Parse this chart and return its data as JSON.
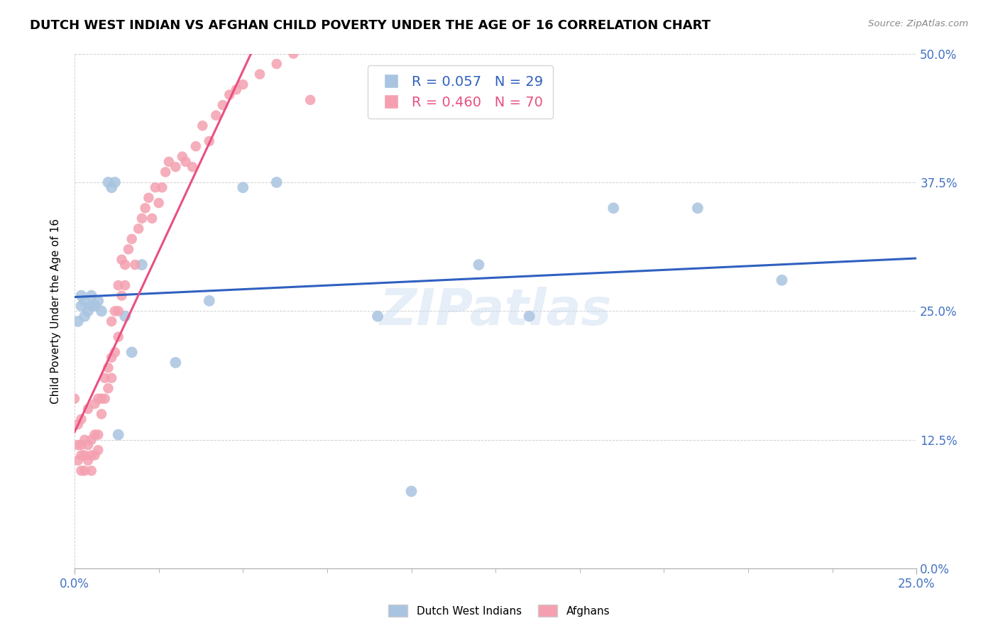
{
  "title": "DUTCH WEST INDIAN VS AFGHAN CHILD POVERTY UNDER THE AGE OF 16 CORRELATION CHART",
  "source": "Source: ZipAtlas.com",
  "ylabel": "Child Poverty Under the Age of 16",
  "x_min": 0.0,
  "x_max": 0.25,
  "y_min": 0.0,
  "y_max": 0.5,
  "watermark": "ZIPatlas",
  "legend_labels": [
    "Dutch West Indians",
    "Afghans"
  ],
  "dutch_R": "0.057",
  "dutch_N": "29",
  "afghan_R": "0.460",
  "afghan_N": "70",
  "dutch_color": "#a8c4e0",
  "afghan_color": "#f4a0b0",
  "dutch_line_color": "#3060c0",
  "afghan_line_color": "#e85080",
  "dutch_scatter_x": [
    0.001,
    0.002,
    0.002,
    0.003,
    0.003,
    0.004,
    0.005,
    0.005,
    0.006,
    0.007,
    0.008,
    0.01,
    0.011,
    0.012,
    0.013,
    0.015,
    0.017,
    0.02,
    0.03,
    0.04,
    0.05,
    0.06,
    0.09,
    0.1,
    0.12,
    0.135,
    0.16,
    0.185,
    0.21
  ],
  "dutch_scatter_y": [
    0.24,
    0.255,
    0.265,
    0.245,
    0.26,
    0.25,
    0.255,
    0.265,
    0.255,
    0.26,
    0.25,
    0.375,
    0.37,
    0.375,
    0.13,
    0.245,
    0.21,
    0.295,
    0.2,
    0.26,
    0.37,
    0.375,
    0.245,
    0.075,
    0.295,
    0.245,
    0.35,
    0.35,
    0.28
  ],
  "afghan_scatter_x": [
    0.0,
    0.001,
    0.001,
    0.001,
    0.002,
    0.002,
    0.002,
    0.002,
    0.003,
    0.003,
    0.003,
    0.004,
    0.004,
    0.004,
    0.005,
    0.005,
    0.005,
    0.006,
    0.006,
    0.006,
    0.007,
    0.007,
    0.007,
    0.008,
    0.008,
    0.009,
    0.009,
    0.01,
    0.01,
    0.011,
    0.011,
    0.011,
    0.012,
    0.012,
    0.013,
    0.013,
    0.013,
    0.014,
    0.014,
    0.015,
    0.015,
    0.016,
    0.017,
    0.018,
    0.019,
    0.02,
    0.021,
    0.022,
    0.023,
    0.024,
    0.025,
    0.026,
    0.027,
    0.028,
    0.03,
    0.032,
    0.033,
    0.035,
    0.036,
    0.038,
    0.04,
    0.042,
    0.044,
    0.046,
    0.048,
    0.05,
    0.055,
    0.06,
    0.065,
    0.07
  ],
  "afghan_scatter_y": [
    0.165,
    0.105,
    0.12,
    0.14,
    0.095,
    0.11,
    0.12,
    0.145,
    0.095,
    0.11,
    0.125,
    0.105,
    0.12,
    0.155,
    0.095,
    0.11,
    0.125,
    0.11,
    0.13,
    0.16,
    0.115,
    0.13,
    0.165,
    0.15,
    0.165,
    0.165,
    0.185,
    0.175,
    0.195,
    0.185,
    0.205,
    0.24,
    0.21,
    0.25,
    0.225,
    0.25,
    0.275,
    0.265,
    0.3,
    0.275,
    0.295,
    0.31,
    0.32,
    0.295,
    0.33,
    0.34,
    0.35,
    0.36,
    0.34,
    0.37,
    0.355,
    0.37,
    0.385,
    0.395,
    0.39,
    0.4,
    0.395,
    0.39,
    0.41,
    0.43,
    0.415,
    0.44,
    0.45,
    0.46,
    0.465,
    0.47,
    0.48,
    0.49,
    0.5,
    0.455
  ]
}
